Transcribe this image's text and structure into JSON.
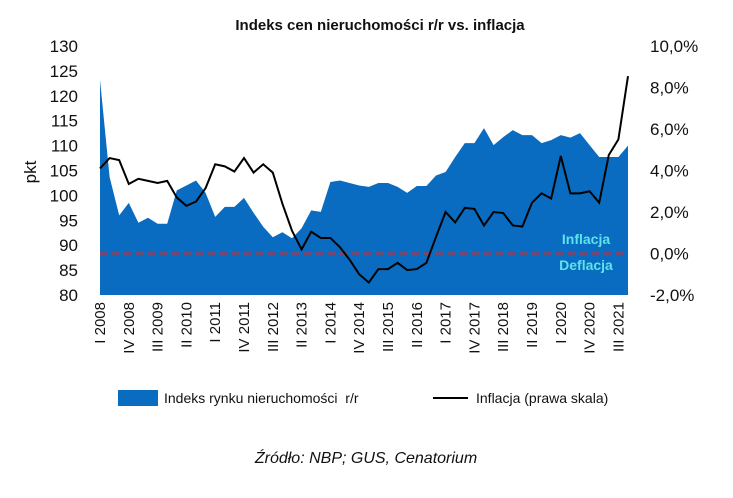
{
  "chart_data": {
    "type": "area+line",
    "title": "Indeks cen nieruchomości r/r vs. inflacja",
    "ylabel": "pkt",
    "ylim": [
      80,
      130
    ],
    "y_ticks": [
      "130",
      "125",
      "120",
      "115",
      "110",
      "105",
      "100",
      "95",
      "90",
      "85",
      "80"
    ],
    "y2lim": [
      -2,
      10
    ],
    "y2_ticks": [
      "10,0%",
      "8,0%",
      "6,0%",
      "4,0%",
      "2,0%",
      "0,0%",
      "-2,0%"
    ],
    "x_tick_labels": [
      "I 2008",
      "IV 2008",
      "III 2009",
      "II 2010",
      "I 2011",
      "IV 2011",
      "III 2012",
      "II 2013",
      "I 2014",
      "IV 2014",
      "III 2015",
      "II 2016",
      "I 2017",
      "IV 2017",
      "III 2018",
      "II 2019",
      "I 2020",
      "IV 2020",
      "III 2021"
    ],
    "x_start": "I 2008",
    "x_end": "IV 2021",
    "series": [
      {
        "name": "Indeks rynku nieruchomości  r/r",
        "type": "area",
        "axis": "left",
        "color": "#0a6cc0",
        "values": [
          123.2,
          103.7,
          96,
          98.5,
          94.5,
          95.5,
          94.3,
          94.3,
          101,
          102,
          103,
          100.5,
          95.7,
          97.7,
          97.7,
          99.5,
          96.5,
          93.7,
          91.6,
          92.6,
          91.4,
          93.4,
          97,
          96.7,
          102.7,
          103,
          102.5,
          102,
          101.7,
          102.5,
          102.5,
          101.7,
          100.5,
          101.9,
          101.9,
          104,
          104.7,
          107.7,
          110.5,
          110.5,
          113.5,
          110.1,
          111.7,
          113.1,
          112.1,
          112.1,
          110.5,
          111.1,
          112.1,
          111.6,
          112.5,
          110.1,
          107.7,
          107.7,
          107.7,
          110
        ]
      },
      {
        "name": "Inflacja (prawa skala)",
        "type": "line",
        "axis": "right",
        "color": "#000000",
        "values": [
          4.1,
          4.6,
          4.5,
          3.35,
          3.6,
          3.5,
          3.4,
          3.5,
          2.7,
          2.3,
          2.5,
          3.15,
          4.3,
          4.2,
          3.95,
          4.6,
          3.9,
          4.3,
          3.9,
          2.4,
          1.1,
          0.2,
          1.05,
          0.75,
          0.75,
          0.3,
          -0.3,
          -1.0,
          -1.4,
          -0.75,
          -0.75,
          -0.45,
          -0.8,
          -0.75,
          -0.45,
          0.8,
          2.0,
          1.5,
          2.2,
          2.15,
          1.35,
          2.0,
          1.95,
          1.35,
          1.3,
          2.45,
          2.9,
          2.65,
          4.7,
          2.9,
          2.9,
          3.0,
          2.45,
          4.75,
          5.5,
          8.55
        ]
      }
    ],
    "reference_line": {
      "value_right_axis": 0,
      "color": "#d62828",
      "style": "dashed"
    },
    "annotations": {
      "above": "Inflacja",
      "below": "Deflacja",
      "color": "#5fe3ea"
    },
    "legend": "bottom",
    "grid": false,
    "source": "Źródło: NBP; GUS, Cenatorium"
  }
}
